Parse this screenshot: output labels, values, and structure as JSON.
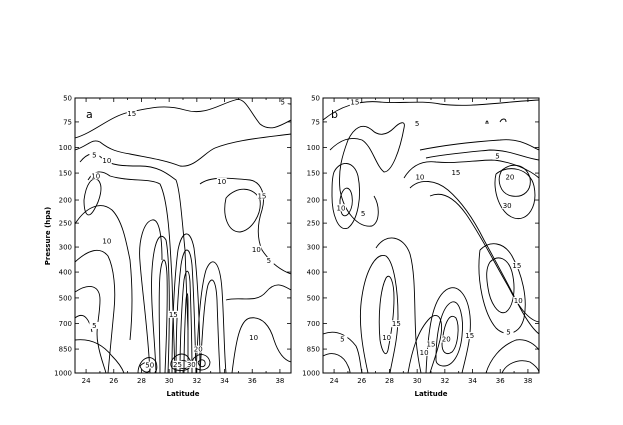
{
  "chart_data": [
    {
      "type": "contour",
      "panel_label": "a",
      "xlabel": "Latitude",
      "ylabel": "Pressure (hpa)",
      "x_ticks": [
        24,
        26,
        28,
        30,
        32,
        34,
        36,
        38
      ],
      "y_ticks": [
        50,
        75,
        100,
        150,
        200,
        250,
        300,
        400,
        500,
        700,
        850,
        1000
      ],
      "xlim": [
        23.2,
        38.8
      ],
      "contour_labels": [
        {
          "text": "15",
          "lat": 27.3,
          "p": 68
        },
        {
          "text": "5",
          "lat": 38.2,
          "p": 56
        },
        {
          "text": "5",
          "lat": 24.6,
          "p": 118
        },
        {
          "text": "10",
          "lat": 25.5,
          "p": 128
        },
        {
          "text": "10",
          "lat": 24.7,
          "p": 158
        },
        {
          "text": "10",
          "lat": 33.8,
          "p": 168
        },
        {
          "text": "15",
          "lat": 36.7,
          "p": 195
        },
        {
          "text": "10",
          "lat": 25.5,
          "p": 290
        },
        {
          "text": "10",
          "lat": 36.3,
          "p": 315
        },
        {
          "text": "5",
          "lat": 37.2,
          "p": 360
        },
        {
          "text": "15",
          "lat": 30.3,
          "p": 640
        },
        {
          "text": "5",
          "lat": 24.6,
          "p": 720
        },
        {
          "text": "10",
          "lat": 36.1,
          "p": 790
        },
        {
          "text": "20",
          "lat": 32.1,
          "p": 860
        },
        {
          "text": "50",
          "lat": 28.6,
          "p": 960
        },
        {
          "text": "25",
          "lat": 30.6,
          "p": 955
        },
        {
          "text": "30",
          "lat": 31.6,
          "p": 955
        }
      ]
    },
    {
      "type": "contour",
      "panel_label": "b",
      "xlabel": "Latitude",
      "ylabel": "",
      "x_ticks": [
        24,
        26,
        28,
        30,
        32,
        34,
        36,
        38
      ],
      "y_ticks": [
        50,
        75,
        100,
        150,
        200,
        250,
        300,
        400,
        500,
        700,
        850,
        1000
      ],
      "xlim": [
        23.2,
        38.8
      ],
      "contour_labels": [
        {
          "text": "15",
          "lat": 25.5,
          "p": 56
        },
        {
          "text": "5",
          "lat": 30.0,
          "p": 78
        },
        {
          "text": "5",
          "lat": 35.8,
          "p": 120
        },
        {
          "text": "10",
          "lat": 30.2,
          "p": 160
        },
        {
          "text": "15",
          "lat": 32.8,
          "p": 152
        },
        {
          "text": "20",
          "lat": 36.7,
          "p": 160
        },
        {
          "text": "30",
          "lat": 36.5,
          "p": 215
        },
        {
          "text": "10",
          "lat": 24.5,
          "p": 220
        },
        {
          "text": "5",
          "lat": 26.1,
          "p": 232
        },
        {
          "text": "15",
          "lat": 37.2,
          "p": 380
        },
        {
          "text": "10",
          "lat": 37.3,
          "p": 530
        },
        {
          "text": "15",
          "lat": 28.5,
          "p": 710
        },
        {
          "text": "10",
          "lat": 27.8,
          "p": 790
        },
        {
          "text": "5",
          "lat": 24.6,
          "p": 800
        },
        {
          "text": "15",
          "lat": 31.0,
          "p": 830
        },
        {
          "text": "10",
          "lat": 30.5,
          "p": 880
        },
        {
          "text": "15",
          "lat": 33.8,
          "p": 780
        },
        {
          "text": "5",
          "lat": 36.6,
          "p": 760
        },
        {
          "text": "20",
          "lat": 32.1,
          "p": 800
        }
      ]
    }
  ]
}
